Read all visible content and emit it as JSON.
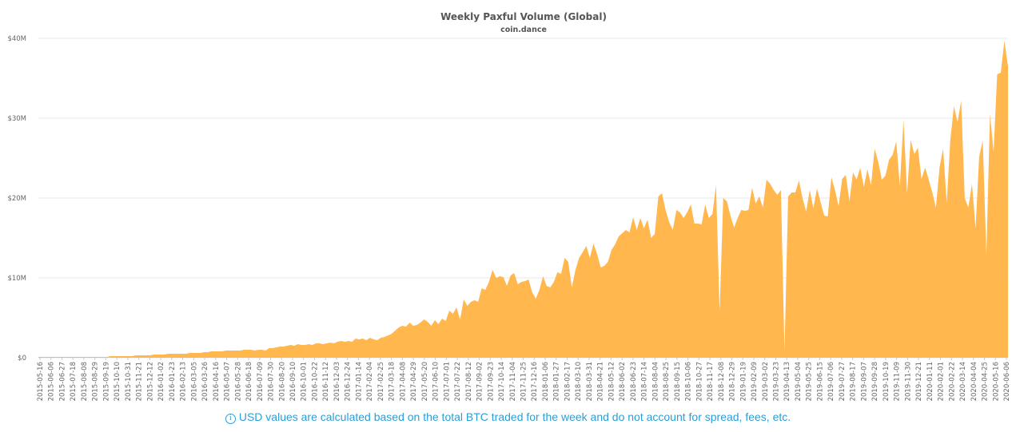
{
  "chart_data": {
    "type": "area",
    "title": "Weekly Paxful Volume (Global)",
    "subtitle": "coin.dance",
    "y_ticks": [
      "$0",
      "$10M",
      "$20M",
      "$30M",
      "$40M"
    ],
    "ylim": [
      0,
      40000000
    ],
    "grid": true,
    "color": "#FFB13F",
    "x_labels": [
      "2015-05-16",
      "2015-06-06",
      "2015-06-27",
      "2015-07-18",
      "2015-08-08",
      "2015-08-29",
      "2015-09-19",
      "2015-10-10",
      "2015-10-31",
      "2015-11-21",
      "2015-12-12",
      "2016-01-02",
      "2016-01-23",
      "2016-02-13",
      "2016-03-05",
      "2016-03-26",
      "2016-04-16",
      "2016-05-07",
      "2016-05-28",
      "2016-06-18",
      "2016-07-09",
      "2016-07-30",
      "2016-08-20",
      "2016-09-10",
      "2016-10-01",
      "2016-10-22",
      "2016-11-12",
      "2016-12-03",
      "2016-12-24",
      "2017-01-14",
      "2017-02-04",
      "2017-02-25",
      "2017-03-18",
      "2017-04-08",
      "2017-04-29",
      "2017-05-20",
      "2017-06-10",
      "2017-07-01",
      "2017-07-22",
      "2017-08-12",
      "2017-09-02",
      "2017-09-23",
      "2017-10-14",
      "2017-11-04",
      "2017-11-25",
      "2017-12-16",
      "2018-01-06",
      "2018-01-27",
      "2018-02-17",
      "2018-03-10",
      "2018-03-31",
      "2018-04-21",
      "2018-05-12",
      "2018-06-02",
      "2018-06-23",
      "2018-07-14",
      "2018-08-04",
      "2018-08-25",
      "2018-09-15",
      "2018-10-06",
      "2018-10-27",
      "2018-11-17",
      "2018-12-08",
      "2018-12-29",
      "2019-01-19",
      "2019-02-09",
      "2019-03-02",
      "2019-03-23",
      "2019-04-13",
      "2019-05-04",
      "2019-05-25",
      "2019-06-15",
      "2019-07-06",
      "2019-07-27",
      "2019-08-17",
      "2019-09-07",
      "2019-09-28",
      "2019-10-19",
      "2019-11-09",
      "2019-11-30",
      "2019-12-21",
      "2020-01-11",
      "2020-02-01",
      "2020-02-22",
      "2020-03-14",
      "2020-04-04",
      "2020-04-25",
      "2020-05-16",
      "2020-06-06"
    ],
    "series": [
      {
        "values": [
          0.1,
          0.1,
          0.1,
          0.1,
          0.1,
          0.1,
          0.1,
          0.1,
          0.1,
          0.1,
          0.1,
          0.1,
          0.1,
          0.1,
          0.1,
          0.1,
          0.1,
          0.1,
          0.1,
          0.1,
          0.2,
          0.2,
          0.2,
          0.2,
          0.2,
          0.2,
          0.2,
          0.3,
          0.3,
          0.3,
          0.3,
          0.3,
          0.4,
          0.4,
          0.4,
          0.4,
          0.5,
          0.5,
          0.5,
          0.5,
          0.5,
          0.5,
          0.6,
          0.6,
          0.6,
          0.6,
          0.7,
          0.7,
          0.8,
          0.8,
          0.8,
          0.8,
          0.9,
          0.9,
          0.9,
          0.9,
          0.9,
          1.0,
          1.0,
          1.0,
          0.9,
          1.0,
          1.0,
          0.9,
          1.2,
          1.2,
          1.3,
          1.4,
          1.4,
          1.5,
          1.6,
          1.5,
          1.7,
          1.6,
          1.6,
          1.7,
          1.6,
          1.8,
          1.8,
          1.7,
          1.8,
          1.9,
          1.8,
          2.0,
          2.1,
          2.0,
          2.1,
          2.0,
          2.4,
          2.3,
          2.4,
          2.2,
          2.5,
          2.3,
          2.2,
          2.5,
          2.6,
          2.8,
          3.0,
          3.4,
          3.8,
          4.0,
          3.9,
          4.4,
          4.0,
          4.1,
          4.4,
          4.8,
          4.5,
          4.0,
          4.7,
          4.2,
          4.9,
          4.6,
          5.9,
          5.5,
          6.3,
          4.8,
          7.3,
          6.5,
          7.0,
          7.2,
          7.0,
          8.7,
          8.5,
          9.5,
          11.0,
          10.0,
          10.2,
          10.1,
          9.0,
          10.3,
          10.6,
          9.2,
          9.5,
          9.6,
          9.8,
          8.2,
          7.4,
          8.5,
          10.2,
          9.0,
          8.8,
          9.5,
          10.7,
          10.5,
          12.5,
          12.0,
          8.8,
          11.0,
          12.5,
          13.2,
          14.0,
          12.5,
          14.3,
          13.0,
          11.3,
          11.5,
          12.0,
          13.5,
          14.2,
          15.2,
          15.6,
          16.0,
          15.7,
          17.6,
          16.0,
          17.5,
          16.2,
          17.3,
          15.0,
          15.5,
          20.2,
          20.6,
          18.5,
          17.0,
          16.0,
          18.5,
          18.2,
          17.5,
          18.2,
          19.2,
          16.8,
          16.8,
          16.7,
          19.2,
          17.5,
          18.0,
          21.6,
          5.8,
          20.0,
          19.6,
          17.8,
          16.3,
          17.5,
          18.5,
          18.4,
          18.5,
          21.3,
          19.3,
          20.2,
          18.8,
          22.3,
          21.8,
          21.0,
          20.4,
          21.0,
          0.8,
          20.2,
          20.7,
          20.7,
          22.2,
          20.0,
          18.3,
          21.0,
          18.7,
          21.2,
          19.5,
          17.8,
          17.7,
          22.6,
          21.0,
          19.0,
          22.4,
          22.9,
          19.6,
          23.2,
          22.3,
          23.8,
          21.4,
          23.6,
          21.6,
          26.2,
          24.5,
          22.3,
          22.8,
          24.8,
          25.4,
          27.1,
          21.5,
          29.8,
          20.6,
          27.3,
          25.5,
          26.3,
          22.4,
          23.8,
          22.3,
          20.7,
          18.8,
          23.8,
          26.2,
          19.4,
          27.3,
          31.5,
          29.5,
          32.2,
          20.0,
          18.8,
          21.8,
          16.2,
          25.2,
          27.2,
          12.8,
          30.5,
          25.8,
          35.5,
          35.7,
          39.7,
          36.5
        ]
      }
    ]
  },
  "footer": {
    "info_icon": "info-icon",
    "text": "USD values are calculated based on the total BTC traded for the week and do not account for spread, fees, etc."
  }
}
